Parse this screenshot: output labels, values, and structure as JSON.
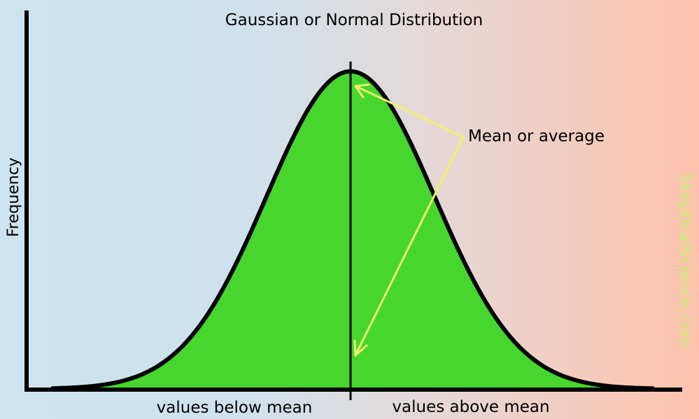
{
  "title": "Gaussian or Normal Distribution",
  "y_axis_label": "Frequency",
  "x_label_left": "values below mean",
  "x_label_right": "values above mean",
  "annotation": "Mean or average",
  "watermark": "SkepticalScience.com",
  "colors": {
    "background_left": "#cde3ef",
    "background_right": "#ffc2ad",
    "curve_fill": "#46d62e",
    "curve_stroke": "#000000",
    "arrow": "#f0f06a",
    "watermark": "#c4f070"
  }
}
